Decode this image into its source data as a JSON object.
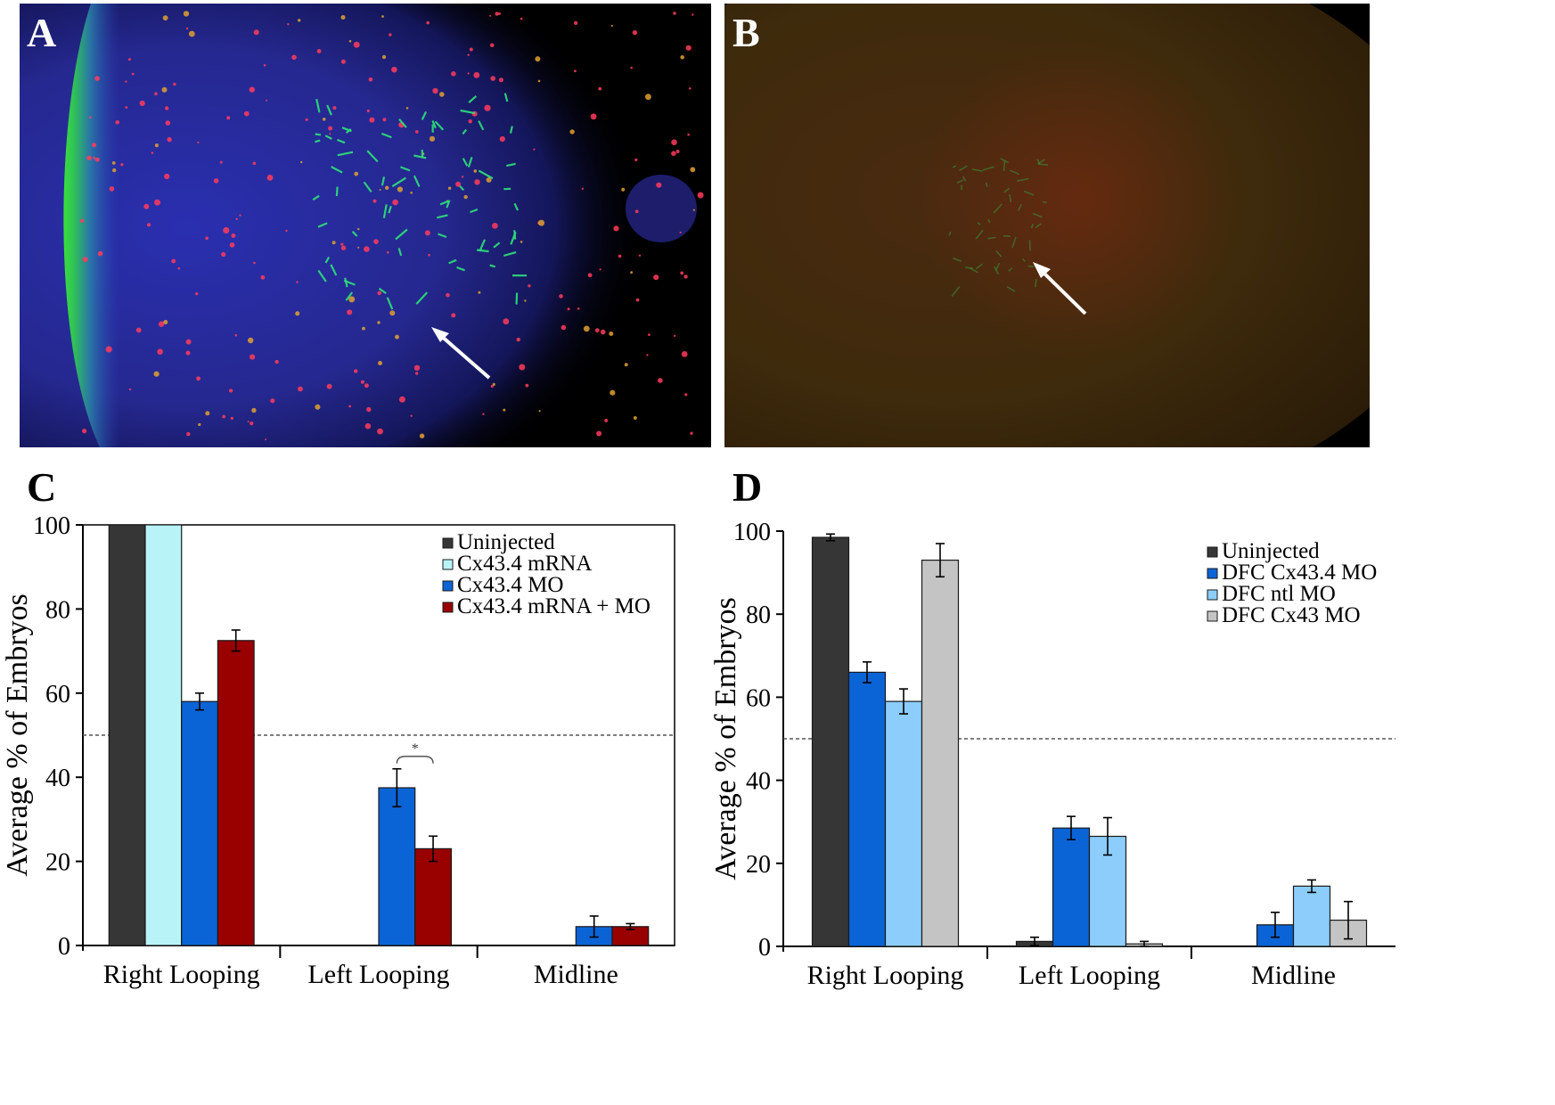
{
  "panels": {
    "a": {
      "letter": "A"
    },
    "b": {
      "letter": "B"
    },
    "c": {
      "letter": "C"
    },
    "d": {
      "letter": "D"
    }
  },
  "colors": {
    "uninjected": "#363636",
    "cx434_mrna": "#b8f3f8",
    "cx434_mo": "#0a64d6",
    "cx434_mrna_mo": "#990000",
    "dfc_cx434_mo": "#0a64d6",
    "dfc_ntl_mo": "#8ccdfc",
    "dfc_cx43_mo": "#c4c4c4"
  },
  "chart_data": [
    {
      "panel": "C",
      "type": "bar",
      "categories": [
        "Right Looping",
        "Left Looping",
        "Midline"
      ],
      "ylabel": "Average % of Embryos",
      "xlabel": "",
      "ylim": [
        0,
        100
      ],
      "yticks": [
        0,
        20,
        40,
        60,
        80,
        100
      ],
      "reference_line": 50,
      "legend_position": "top-right",
      "annotation": {
        "text": "*",
        "category": "Left Looping",
        "between_series": [
          2,
          3
        ]
      },
      "series": [
        {
          "name": "Uninjected",
          "color": "#363636",
          "values": [
            100,
            0,
            0
          ],
          "errors": [
            0,
            0,
            0
          ]
        },
        {
          "name": "Cx43.4 mRNA",
          "color": "#b8f3f8",
          "values": [
            100,
            0,
            0
          ],
          "errors": [
            0,
            0,
            0
          ]
        },
        {
          "name": "Cx43.4 MO",
          "color": "#0a64d6",
          "values": [
            58,
            37.5,
            4.5
          ],
          "errors": [
            2,
            4.5,
            2.5
          ]
        },
        {
          "name": "Cx43.4 mRNA + MO",
          "color": "#990000",
          "values": [
            72.5,
            23,
            4.5
          ],
          "errors": [
            2.5,
            3,
            0.7
          ]
        }
      ]
    },
    {
      "panel": "D",
      "type": "bar",
      "categories": [
        "Right Looping",
        "Left Looping",
        "Midline"
      ],
      "ylabel": "Average % of Embryos",
      "xlabel": "",
      "ylim": [
        0,
        100
      ],
      "yticks": [
        0,
        20,
        40,
        60,
        80,
        100
      ],
      "reference_line": 50,
      "legend_position": "top-right",
      "series": [
        {
          "name": "Uninjected",
          "color": "#363636",
          "values": [
            98.5,
            1.2,
            0
          ],
          "errors": [
            0.8,
            1,
            0
          ]
        },
        {
          "name": "DFC Cx43.4 MO",
          "color": "#0a64d6",
          "values": [
            66,
            28.5,
            5.2
          ],
          "errors": [
            2.5,
            2.8,
            3
          ]
        },
        {
          "name": "DFC ntl MO",
          "color": "#8ccdfc",
          "values": [
            59,
            26.5,
            14.5
          ],
          "errors": [
            3,
            4.5,
            1.5
          ]
        },
        {
          "name": "DFC Cx43 MO",
          "color": "#c4c4c4",
          "values": [
            93,
            0.6,
            6.3
          ],
          "errors": [
            4,
            0.6,
            4.5
          ]
        }
      ]
    }
  ]
}
